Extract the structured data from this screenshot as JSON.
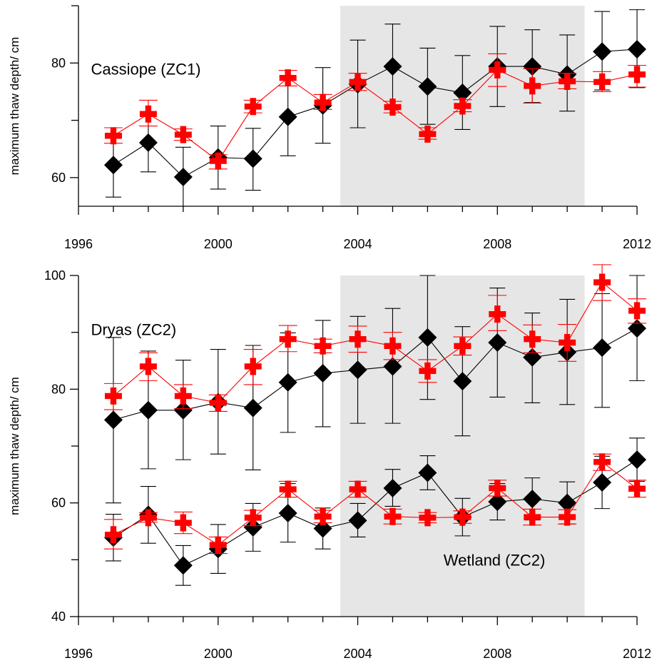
{
  "chart_data": [
    {
      "type": "line",
      "ylabel": "maximum thaw depth/ cm",
      "xlim": [
        1996,
        2012
      ],
      "ylim": [
        55,
        90
      ],
      "xticks": [
        1996,
        2000,
        2004,
        2008,
        2012
      ],
      "yticks": [
        60,
        80
      ],
      "shaded_range": [
        2003.5,
        2010.5
      ],
      "annotations": [
        {
          "text": "Cassiope (ZC1)",
          "x": 1996.5,
          "y": 79
        }
      ],
      "series": [
        {
          "marker": "diamond",
          "color": "#000000",
          "x": [
            1997,
            1998,
            1999,
            2000,
            2001,
            2002,
            2003,
            2004,
            2005,
            2006,
            2007,
            2008,
            2009,
            2010,
            2011,
            2012
          ],
          "values": [
            62.2,
            66.1,
            60.1,
            63.5,
            63.3,
            70.6,
            72.6,
            76.3,
            79.4,
            75.9,
            74.8,
            79.4,
            79.4,
            78.0,
            82.0,
            82.4
          ],
          "err_low": [
            56.6,
            61.0,
            55.0,
            58.0,
            57.8,
            63.8,
            66.0,
            68.7,
            72.0,
            69.3,
            68.4,
            72.4,
            73.1,
            71.6,
            75.3,
            75.7
          ],
          "err_high": [
            67.6,
            71.4,
            65.3,
            69.0,
            68.6,
            77.5,
            79.2,
            84.0,
            86.8,
            82.6,
            81.3,
            86.4,
            85.8,
            84.9,
            89.0,
            89.3
          ]
        },
        {
          "marker": "cross",
          "color": "#ff0000",
          "x": [
            1997,
            1998,
            1999,
            2000,
            2001,
            2002,
            2003,
            2004,
            2005,
            2006,
            2007,
            2008,
            2009,
            2010,
            2011,
            2012
          ],
          "values": [
            67.3,
            71.1,
            67.5,
            62.9,
            72.4,
            77.4,
            73.1,
            76.7,
            72.3,
            67.6,
            72.5,
            78.8,
            76.0,
            76.8,
            76.7,
            78.0
          ],
          "err_low": [
            66.0,
            69.0,
            66.5,
            61.5,
            71.3,
            76.0,
            71.9,
            75.2,
            71.3,
            66.7,
            71.5,
            75.9,
            73.0,
            75.5,
            75.0,
            75.8
          ],
          "err_high": [
            68.7,
            73.5,
            68.5,
            64.0,
            73.5,
            78.7,
            74.5,
            78.2,
            73.3,
            68.7,
            73.6,
            81.6,
            79.0,
            78.2,
            78.5,
            79.6
          ]
        }
      ]
    },
    {
      "type": "line",
      "ylabel": "maximum thaw depth/ cm",
      "xlim": [
        1996,
        2012
      ],
      "ylim": [
        40,
        100
      ],
      "xticks": [
        1996,
        2000,
        2004,
        2008,
        2012
      ],
      "yticks": [
        40,
        60,
        80,
        100
      ],
      "shaded_range": [
        2003.5,
        2010.5
      ],
      "annotations": [
        {
          "text": "Dryas (ZC2)",
          "x": 1996.5,
          "y": 90.5
        },
        {
          "text": "Wetland (ZC2)",
          "x": 2006.6,
          "y": 50
        }
      ],
      "series": [
        {
          "marker": "diamond",
          "color": "#000000",
          "x": [
            1997,
            1998,
            1999,
            2000,
            2001,
            2002,
            2003,
            2004,
            2005,
            2006,
            2007,
            2008,
            2009,
            2010,
            2011,
            2012
          ],
          "values": [
            74.6,
            76.3,
            76.3,
            77.7,
            76.7,
            81.2,
            82.8,
            83.4,
            84.0,
            89.1,
            81.4,
            88.2,
            85.6,
            86.5,
            87.3,
            90.7
          ],
          "err_low": [
            60.0,
            66.0,
            67.6,
            68.6,
            65.8,
            72.4,
            73.4,
            74.0,
            74.0,
            78.2,
            71.8,
            78.6,
            77.6,
            77.3,
            76.8,
            81.5
          ],
          "err_high": [
            89.1,
            86.7,
            85.1,
            87.0,
            87.7,
            89.9,
            92.1,
            92.8,
            94.2,
            100.0,
            91.0,
            97.8,
            93.4,
            95.8,
            96.8,
            100.0
          ]
        },
        {
          "marker": "cross",
          "color": "#ff0000",
          "x": [
            1997,
            1998,
            1999,
            2000,
            2001,
            2002,
            2003,
            2004,
            2005,
            2006,
            2007,
            2008,
            2009,
            2010,
            2011,
            2012
          ],
          "values": [
            78.8,
            84.0,
            78.8,
            77.6,
            84.0,
            88.8,
            87.6,
            88.8,
            87.6,
            83.2,
            87.6,
            93.2,
            88.8,
            88.2,
            98.8,
            93.8
          ],
          "err_low": [
            76.4,
            81.5,
            76.6,
            76.1,
            80.8,
            86.6,
            86.4,
            86.5,
            85.2,
            81.2,
            86.0,
            90.3,
            86.4,
            84.9,
            95.6,
            91.6
          ],
          "err_high": [
            81.0,
            86.4,
            80.8,
            79.0,
            87.0,
            91.2,
            88.8,
            91.1,
            90.0,
            85.2,
            89.2,
            96.5,
            91.3,
            91.4,
            101.9,
            95.9
          ]
        },
        {
          "marker": "diamond",
          "color": "#000000",
          "x": [
            1997,
            1998,
            1999,
            2000,
            2001,
            2002,
            2003,
            2004,
            2005,
            2006,
            2007,
            2008,
            2009,
            2010,
            2011,
            2012
          ],
          "values": [
            53.9,
            57.9,
            49.0,
            51.9,
            55.7,
            58.2,
            55.5,
            56.9,
            62.6,
            65.3,
            57.5,
            60.2,
            60.7,
            60.0,
            63.6,
            67.6
          ],
          "err_low": [
            49.8,
            52.9,
            45.5,
            47.6,
            51.5,
            53.1,
            51.9,
            54.0,
            59.4,
            62.3,
            54.2,
            57.0,
            57.0,
            56.3,
            59.0,
            63.8
          ],
          "err_high": [
            58.0,
            62.9,
            52.5,
            56.2,
            59.9,
            63.4,
            59.1,
            59.9,
            65.9,
            68.3,
            60.8,
            63.4,
            64.4,
            63.7,
            68.2,
            71.4
          ]
        },
        {
          "marker": "cross",
          "color": "#ff0000",
          "x": [
            1997,
            1998,
            1999,
            2000,
            2001,
            2002,
            2003,
            2004,
            2005,
            2006,
            2007,
            2008,
            2009,
            2010,
            2011,
            2012
          ],
          "values": [
            54.4,
            57.4,
            56.5,
            52.6,
            57.4,
            62.4,
            57.6,
            62.4,
            57.6,
            57.4,
            57.5,
            62.6,
            57.5,
            57.5,
            67.2,
            62.5
          ],
          "err_low": [
            51.9,
            56.6,
            54.6,
            51.1,
            56.0,
            61.0,
            56.5,
            61.0,
            56.3,
            56.5,
            56.4,
            61.2,
            56.1,
            56.3,
            65.7,
            61.0
          ],
          "err_high": [
            57.1,
            58.3,
            58.4,
            54.0,
            58.7,
            63.8,
            58.7,
            63.8,
            58.9,
            58.3,
            58.6,
            64.0,
            58.9,
            58.8,
            68.6,
            64.0
          ]
        }
      ]
    }
  ]
}
